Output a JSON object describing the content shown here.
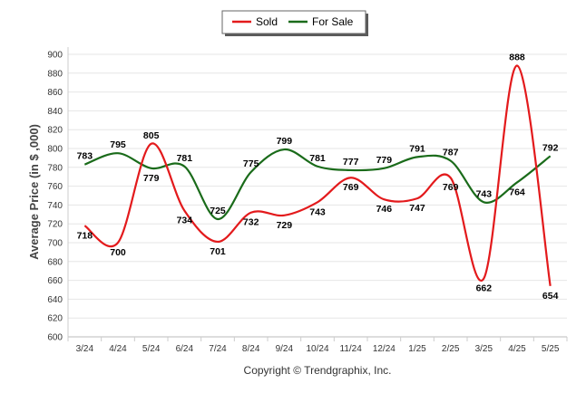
{
  "chart_data": {
    "type": "line",
    "categories": [
      "3/24",
      "4/24",
      "5/24",
      "6/24",
      "7/24",
      "8/24",
      "9/24",
      "10/24",
      "11/24",
      "12/24",
      "1/25",
      "2/25",
      "3/25",
      "4/25",
      "5/25"
    ],
    "series": [
      {
        "name": "Sold",
        "color": "#e31a1c",
        "values": [
          718,
          700,
          805,
          734,
          701,
          732,
          729,
          743,
          769,
          746,
          747,
          769,
          662,
          888,
          654
        ],
        "labels": [
          "718",
          "700",
          "805",
          "734",
          "701",
          "732",
          "729",
          "743",
          "769",
          "746",
          "747",
          "769",
          "662",
          "888",
          "654"
        ]
      },
      {
        "name": "For Sale",
        "color": "#1a6b1a",
        "values": [
          783,
          795,
          779,
          781,
          725,
          775,
          799,
          781,
          777,
          779,
          791,
          787,
          743,
          764,
          792
        ],
        "labels": [
          "783",
          "795",
          "779",
          "781",
          "725",
          "775",
          "799",
          "781",
          "777",
          "779",
          "791",
          "787",
          "743",
          "764",
          "792"
        ]
      }
    ],
    "ylabel": "Average Price (in $ ,000)",
    "ylim": [
      600,
      900
    ],
    "yticks": [
      "600",
      "620",
      "640",
      "660",
      "680",
      "700",
      "720",
      "740",
      "760",
      "780",
      "800",
      "820",
      "840",
      "860",
      "880",
      "900"
    ],
    "grid": true,
    "legend_position": "top-center",
    "credit": "Copyright © Trendgraphix, Inc."
  }
}
